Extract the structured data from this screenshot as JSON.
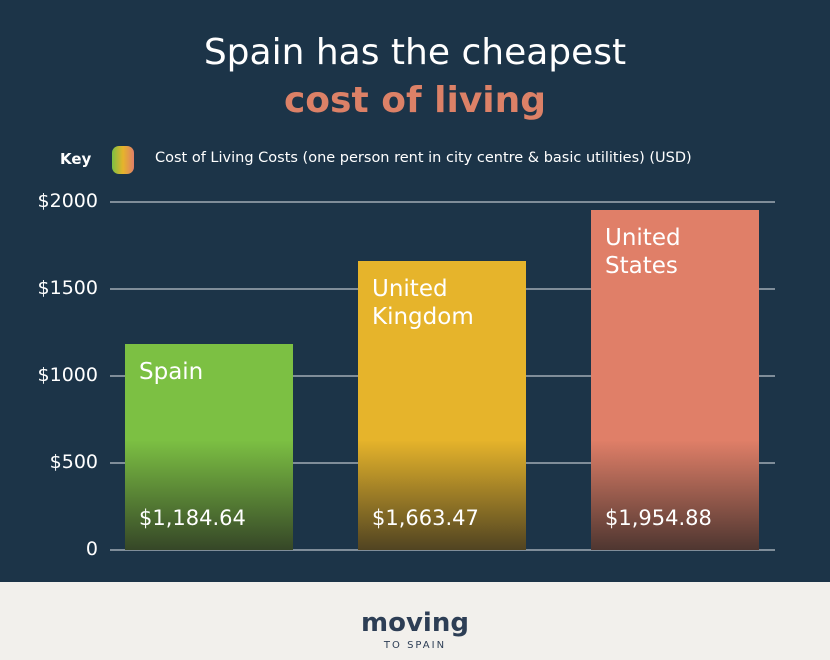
{
  "chart_data": {
    "type": "bar",
    "title": "Spain has the cheapest",
    "subtitle": "cost of living",
    "key_label": "Key",
    "legend_label": "Cost of Living Costs (one person rent in city centre & basic utilities) (USD)",
    "categories": [
      "Spain",
      "United Kingdom",
      "United States"
    ],
    "values": [
      1184.64,
      1663.47,
      1954.88
    ],
    "value_labels": [
      "$1,184.64",
      "$1,663.47",
      "$1,954.88"
    ],
    "colors": [
      "#7cc043",
      "#e6b42b",
      "#e07f68"
    ],
    "ylim": [
      0,
      2000
    ],
    "yticks": [
      0,
      {
        "value": 500,
        "label": "$500"
      },
      {
        "value": 1000,
        "label": "$1000"
      },
      {
        "value": 1500,
        "label": "$1500"
      },
      {
        "value": 2000,
        "label": "$2000"
      }
    ],
    "grid": true
  },
  "footer": {
    "logo": "moving",
    "logo_sub": "TO SPAIN"
  }
}
